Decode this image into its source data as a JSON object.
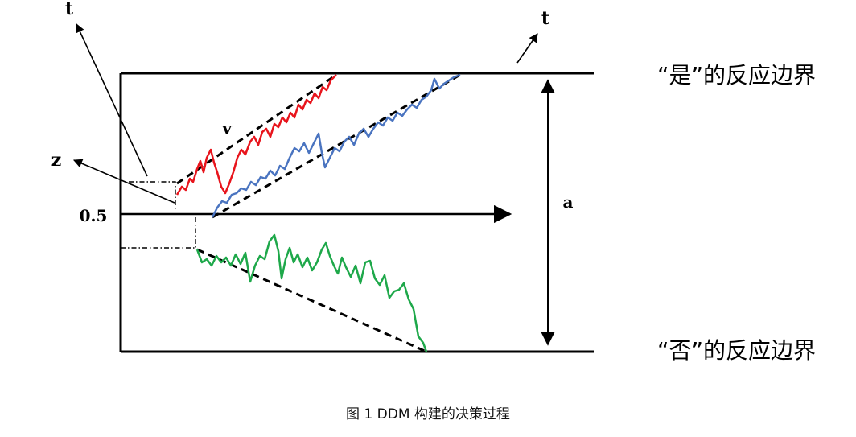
{
  "diagram": {
    "label_t_left": "t",
    "label_t_right": "t",
    "label_v": "v",
    "label_z": "z",
    "label_half": "0.5",
    "label_a": "a",
    "upper_boundary_label": "“是”的反应边界",
    "lower_boundary_label": "“否”的反应边界",
    "colors": {
      "red_path": "#e8141c",
      "blue_path": "#4a74c0",
      "green_path": "#1ea84a",
      "axes": "#000000"
    }
  },
  "caption": "图 1 DDM 构建的决策过程"
}
